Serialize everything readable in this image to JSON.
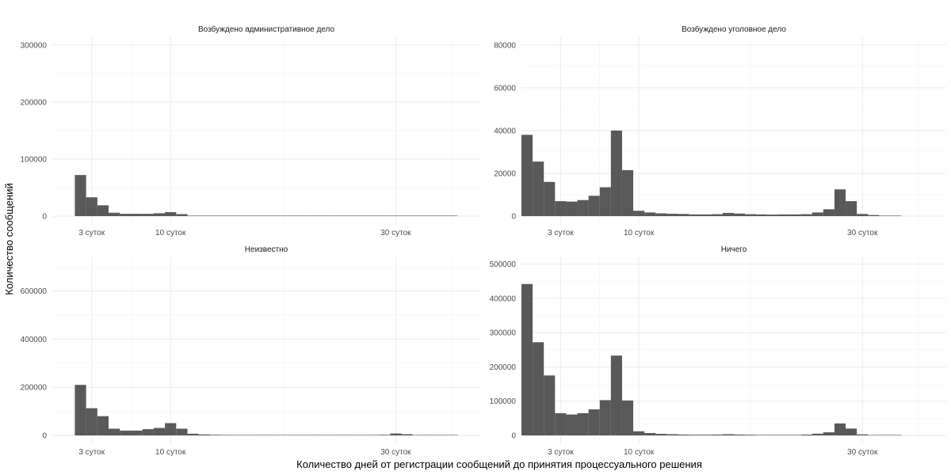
{
  "chart_data": {
    "type": "bar",
    "xlabel": "Количество дней от регистрации сообщений до принятия процессуального решения",
    "ylabel": "Количество сообщений",
    "x_ticks": [
      {
        "value": 3,
        "label": "3 суток"
      },
      {
        "value": 10,
        "label": "10 суток"
      },
      {
        "value": 30,
        "label": "30 суток"
      }
    ],
    "xlim": [
      -0.5,
      37.5
    ],
    "bin_width": 1,
    "colors": {
      "bar": "#595959",
      "grid": "#ebebeb",
      "background": "#ffffff"
    },
    "grid": true,
    "facets": [
      {
        "title": "Возбуждено административное дело",
        "ylim": [
          0,
          315000
        ],
        "yticks": [
          0,
          100000,
          200000,
          300000
        ],
        "x": [
          2,
          3,
          4,
          5,
          6,
          7,
          8,
          9,
          10,
          11,
          12,
          13,
          14,
          15,
          16,
          17,
          18,
          19,
          20,
          21,
          22,
          23,
          24,
          25,
          26,
          27,
          28,
          29,
          30,
          31,
          32,
          33,
          34,
          35
        ],
        "values": [
          72000,
          33000,
          19000,
          6000,
          4000,
          4000,
          4000,
          5000,
          7000,
          3500,
          800,
          500,
          300,
          300,
          200,
          200,
          150,
          150,
          150,
          150,
          150,
          150,
          150,
          150,
          150,
          150,
          150,
          150,
          300,
          300,
          200,
          100,
          100,
          100
        ]
      },
      {
        "title": "Возбуждено уголовное дело",
        "ylim": [
          0,
          84000
        ],
        "yticks": [
          0,
          20000,
          40000,
          60000,
          80000
        ],
        "x": [
          0,
          1,
          2,
          3,
          4,
          5,
          6,
          7,
          8,
          9,
          10,
          11,
          12,
          13,
          14,
          15,
          16,
          17,
          18,
          19,
          20,
          21,
          22,
          23,
          24,
          25,
          26,
          27,
          28,
          29,
          30,
          31,
          32,
          33
        ],
        "values": [
          38000,
          25500,
          16000,
          7000,
          6800,
          7500,
          9500,
          13500,
          40000,
          21500,
          2500,
          1700,
          1300,
          1100,
          1000,
          800,
          800,
          900,
          1500,
          1200,
          900,
          800,
          700,
          800,
          800,
          900,
          1700,
          3200,
          12500,
          7000,
          1000,
          500,
          200,
          100
        ]
      },
      {
        "title": "Неизвестно",
        "ylim": [
          0,
          740000
        ],
        "yticks": [
          0,
          200000,
          400000,
          600000
        ],
        "x": [
          2,
          3,
          4,
          5,
          6,
          7,
          8,
          9,
          10,
          11,
          12,
          13,
          14,
          15,
          16,
          17,
          18,
          19,
          20,
          21,
          22,
          23,
          24,
          25,
          26,
          27,
          28,
          29,
          30,
          31,
          32,
          33,
          34,
          35
        ],
        "values": [
          210000,
          113000,
          80000,
          28000,
          20000,
          20000,
          26000,
          31000,
          51000,
          28000,
          7000,
          4000,
          2500,
          2000,
          1500,
          1000,
          1000,
          800,
          800,
          800,
          800,
          800,
          800,
          800,
          800,
          800,
          1500,
          2500,
          8000,
          5000,
          1500,
          500,
          300,
          200
        ]
      },
      {
        "title": "Ничего",
        "ylim": [
          0,
          520000
        ],
        "yticks": [
          0,
          100000,
          200000,
          300000,
          400000,
          500000
        ],
        "x": [
          0,
          1,
          2,
          3,
          4,
          5,
          6,
          7,
          8,
          9,
          10,
          11,
          12,
          13,
          14,
          15,
          16,
          17,
          18,
          19,
          20,
          21,
          22,
          23,
          24,
          25,
          26,
          27,
          28,
          29,
          30,
          31,
          32,
          33
        ],
        "values": [
          442000,
          272000,
          175000,
          65000,
          61000,
          65000,
          76000,
          103000,
          233000,
          102000,
          12000,
          7000,
          4500,
          3500,
          2500,
          2000,
          2000,
          2500,
          3500,
          2500,
          2000,
          1500,
          1500,
          1500,
          1500,
          2500,
          5000,
          9000,
          35000,
          20000,
          3000,
          1000,
          500,
          200
        ]
      }
    ]
  }
}
